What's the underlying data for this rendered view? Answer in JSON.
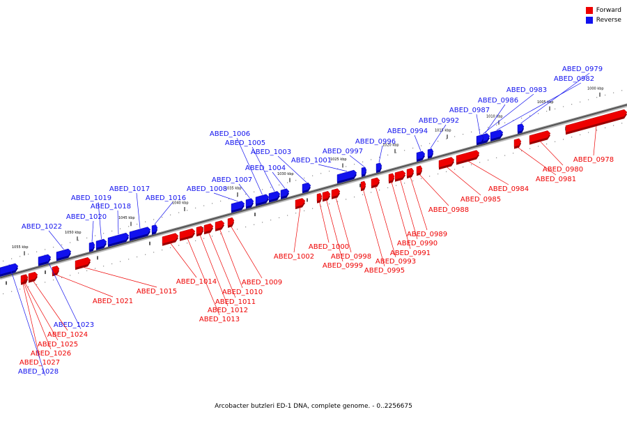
{
  "legend": {
    "forward_label": "Forward",
    "reverse_label": "Reverse",
    "forward_color": "#ee0000",
    "reverse_color": "#1111ee"
  },
  "caption": "Arcobacter butzleri ED-1 DNA, complete genome. - 0..2256675",
  "scale_ticks": [
    "1000 kbp",
    "1005 kbp",
    "1010 kbp",
    "1015 kbp",
    "1020 kbp",
    "1025 kbp",
    "1030 kbp",
    "1035 kbp",
    "1040 kbp",
    "1045 kbp",
    "1050 kbp",
    "1055 kbp"
  ],
  "genes": [
    {
      "name": "ABED_0978",
      "strand": "forward"
    },
    {
      "name": "ABED_0979",
      "strand": "reverse"
    },
    {
      "name": "ABED_0980",
      "strand": "forward"
    },
    {
      "name": "ABED_0981",
      "strand": "forward"
    },
    {
      "name": "ABED_0982",
      "strand": "reverse"
    },
    {
      "name": "ABED_0983",
      "strand": "reverse"
    },
    {
      "name": "ABED_0984",
      "strand": "forward"
    },
    {
      "name": "ABED_0985",
      "strand": "forward"
    },
    {
      "name": "ABED_0986",
      "strand": "reverse"
    },
    {
      "name": "ABED_0987",
      "strand": "reverse"
    },
    {
      "name": "ABED_0988",
      "strand": "forward"
    },
    {
      "name": "ABED_0989",
      "strand": "forward"
    },
    {
      "name": "ABED_0990",
      "strand": "forward"
    },
    {
      "name": "ABED_0991",
      "strand": "forward"
    },
    {
      "name": "ABED_0992",
      "strand": "reverse"
    },
    {
      "name": "ABED_0993",
      "strand": "forward"
    },
    {
      "name": "ABED_0994",
      "strand": "reverse"
    },
    {
      "name": "ABED_0995",
      "strand": "forward"
    },
    {
      "name": "ABED_0996",
      "strand": "reverse"
    },
    {
      "name": "ABED_0997",
      "strand": "reverse"
    },
    {
      "name": "ABED_0998",
      "strand": "forward"
    },
    {
      "name": "ABED_0999",
      "strand": "forward"
    },
    {
      "name": "ABED_1000",
      "strand": "forward"
    },
    {
      "name": "ABED_1001",
      "strand": "reverse"
    },
    {
      "name": "ABED_1002",
      "strand": "forward"
    },
    {
      "name": "ABED_1003",
      "strand": "reverse"
    },
    {
      "name": "ABED_1004",
      "strand": "reverse"
    },
    {
      "name": "ABED_1005",
      "strand": "reverse"
    },
    {
      "name": "ABED_1006",
      "strand": "reverse"
    },
    {
      "name": "ABED_1007",
      "strand": "reverse"
    },
    {
      "name": "ABED_1008",
      "strand": "reverse"
    },
    {
      "name": "ABED_1009",
      "strand": "forward"
    },
    {
      "name": "ABED_1010",
      "strand": "forward"
    },
    {
      "name": "ABED_1011",
      "strand": "forward"
    },
    {
      "name": "ABED_1012",
      "strand": "forward"
    },
    {
      "name": "ABED_1013",
      "strand": "forward"
    },
    {
      "name": "ABED_1014",
      "strand": "forward"
    },
    {
      "name": "ABED_1015",
      "strand": "forward"
    },
    {
      "name": "ABED_1016",
      "strand": "reverse"
    },
    {
      "name": "ABED_1017",
      "strand": "reverse"
    },
    {
      "name": "ABED_1018",
      "strand": "reverse"
    },
    {
      "name": "ABED_1019",
      "strand": "reverse"
    },
    {
      "name": "ABED_1020",
      "strand": "reverse"
    },
    {
      "name": "ABED_1021",
      "strand": "forward"
    },
    {
      "name": "ABED_1022",
      "strand": "reverse"
    },
    {
      "name": "ABED_1023",
      "strand": "reverse"
    },
    {
      "name": "ABED_1024",
      "strand": "forward"
    },
    {
      "name": "ABED_1025",
      "strand": "forward"
    },
    {
      "name": "ABED_1026",
      "strand": "forward"
    },
    {
      "name": "ABED_1027",
      "strand": "forward"
    },
    {
      "name": "ABED_1028",
      "strand": "reverse"
    }
  ]
}
